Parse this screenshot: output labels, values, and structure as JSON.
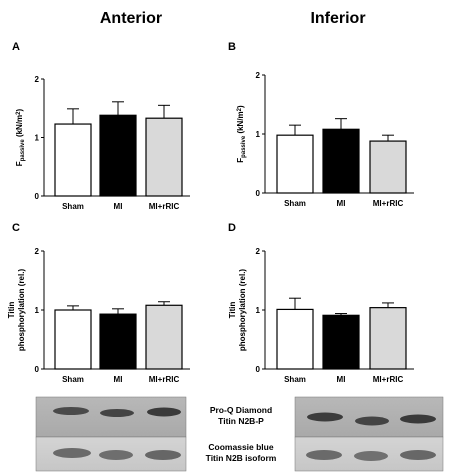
{
  "headers": {
    "left": "Anterior",
    "right": "Inferior"
  },
  "colors": {
    "sham": "#ffffff",
    "mi": "#000000",
    "mi_rric": "#d9d9d9"
  },
  "chart_data": [
    {
      "panel": "A",
      "type": "bar",
      "ylabel_main": "F",
      "ylabel_sub": "passive",
      "ylabel_unit": " (kN/m",
      "ylabel_sup": "2",
      "ylabel_close": ")",
      "ylim": [
        0,
        2
      ],
      "yticks": [
        "0",
        "1",
        "2"
      ],
      "categories": [
        "Sham",
        "MI",
        "MI+rRIC"
      ],
      "values": [
        1.23,
        1.38,
        1.33
      ],
      "errors": [
        0.26,
        0.23,
        0.22
      ]
    },
    {
      "panel": "B",
      "type": "bar",
      "ylabel_main": "F",
      "ylabel_sub": "passive",
      "ylabel_unit": " (kN/m",
      "ylabel_sup": "2",
      "ylabel_close": ")",
      "ylim": [
        0,
        2
      ],
      "yticks": [
        "0",
        "1",
        "2"
      ],
      "categories": [
        "Sham",
        "MI",
        "MI+rRIC"
      ],
      "values": [
        0.98,
        1.08,
        0.88
      ],
      "errors": [
        0.17,
        0.18,
        0.1
      ]
    },
    {
      "panel": "C",
      "type": "bar",
      "ylabel_line1": "Titin",
      "ylabel_line2": "phosphorylation (rel.)",
      "ylim": [
        0,
        2
      ],
      "yticks": [
        "0",
        "1",
        "2"
      ],
      "categories": [
        "Sham",
        "MI",
        "MI+rRIC"
      ],
      "values": [
        1.0,
        0.93,
        1.08
      ],
      "errors": [
        0.07,
        0.09,
        0.06
      ]
    },
    {
      "panel": "D",
      "type": "bar",
      "ylabel_line1": "Titin",
      "ylabel_line2": "phosphorylation (rel.)",
      "ylim": [
        0,
        2
      ],
      "yticks": [
        "0",
        "1",
        "2"
      ],
      "categories": [
        "Sham",
        "MI",
        "MI+rRIC"
      ],
      "values": [
        1.01,
        0.91,
        1.04
      ],
      "errors": [
        0.19,
        0.03,
        0.08
      ]
    }
  ],
  "blot_labels": {
    "top_line1": "Pro-Q Diamond",
    "top_line2": "Titin N2B-P",
    "bottom_line1": "Coomassie blue",
    "bottom_line2": "Titin N2B isoform"
  }
}
